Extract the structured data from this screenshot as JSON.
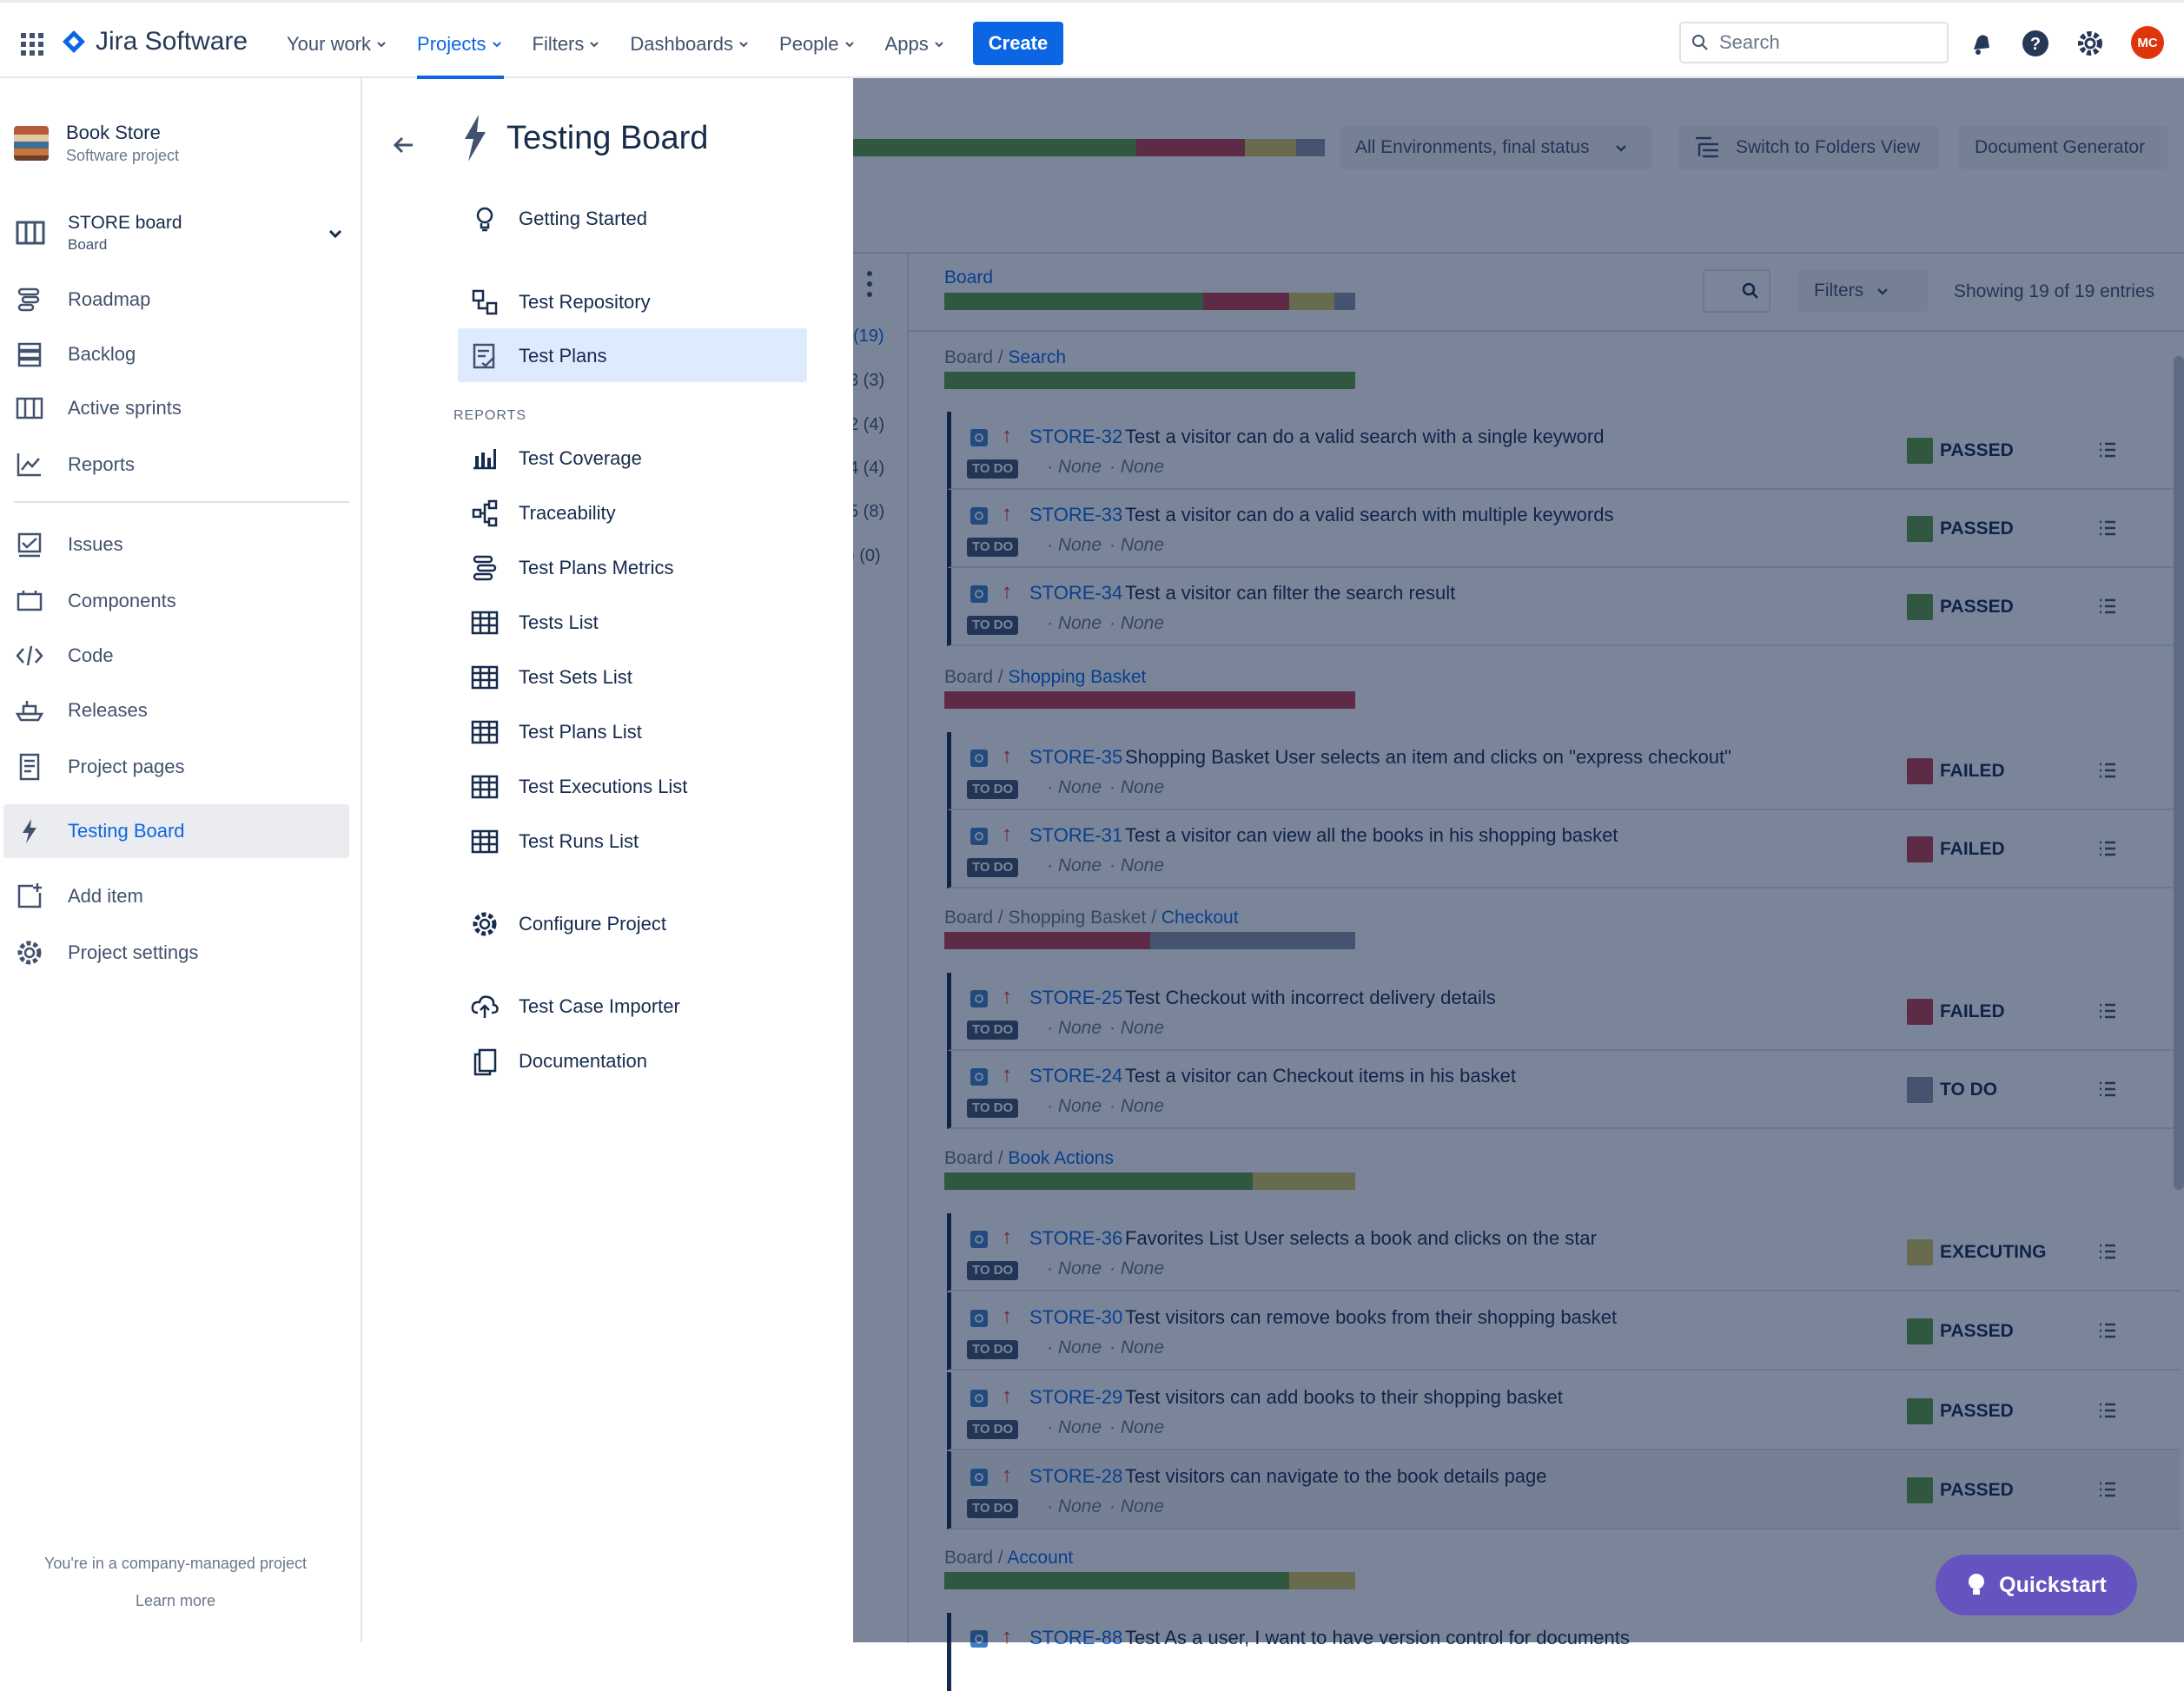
{
  "topnav": {
    "product": "Jira Software",
    "items": [
      "Your work",
      "Projects",
      "Filters",
      "Dashboards",
      "People",
      "Apps"
    ],
    "create": "Create",
    "search_placeholder": "Search",
    "avatar_initials": "MC"
  },
  "sidebar": {
    "project_name": "Book Store",
    "project_type": "Software project",
    "board_name": "STORE board",
    "board_sub": "Board",
    "items": [
      "Roadmap",
      "Backlog",
      "Active sprints",
      "Reports",
      "Issues",
      "Components",
      "Code",
      "Releases",
      "Project pages",
      "Testing Board",
      "Add item",
      "Project settings"
    ],
    "footer_text": "You're in a company-managed project",
    "learn_more": "Learn more"
  },
  "panel2": {
    "title": "Testing Board",
    "items_top": [
      "Getting Started",
      "Test Repository",
      "Test Plans"
    ],
    "reports_label": "REPORTS",
    "reports": [
      "Test Coverage",
      "Traceability",
      "Test Plans Metrics",
      "Tests List",
      "Test Sets List",
      "Test Plans List",
      "Test Executions List",
      "Test Runs List"
    ],
    "items_bottom": [
      "Configure Project",
      "Test Case Importer",
      "Documentation"
    ]
  },
  "main": {
    "env_dropdown": "All Environments, final status",
    "switch_view": "Switch to Folders View",
    "doc_gen": "Document Generator",
    "filters": "Filters",
    "showing": "Showing 19 of 19 entries",
    "rail_counts": [
      "(19)",
      "3 (3)",
      "2 (4)",
      "4 (4)",
      "5 (8)",
      ") (0)"
    ],
    "board_label": "Board",
    "groups": [
      {
        "prefix": "Board / ",
        "name": "Search"
      },
      {
        "prefix": "Board / ",
        "name": "Shopping Basket"
      },
      {
        "prefix": "Board / Shopping Basket / ",
        "name": "Checkout"
      },
      {
        "prefix": "Board / ",
        "name": "Book Actions"
      },
      {
        "prefix": "Board / ",
        "name": "Account"
      }
    ],
    "todo_badge": "TO DO",
    "none": "None",
    "rows": [
      {
        "key": "STORE-32",
        "summary": "Test a visitor can do a valid search with a single keyword",
        "status": "PASSED"
      },
      {
        "key": "STORE-33",
        "summary": "Test a visitor can do a valid search with multiple keywords",
        "status": "PASSED"
      },
      {
        "key": "STORE-34",
        "summary": "Test a visitor can filter the search result",
        "status": "PASSED"
      },
      {
        "key": "STORE-35",
        "summary": "Shopping Basket User selects an item and clicks on \"express checkout\"",
        "status": "FAILED"
      },
      {
        "key": "STORE-31",
        "summary": "Test a visitor can view all the books in his shopping basket",
        "status": "FAILED"
      },
      {
        "key": "STORE-25",
        "summary": "Test Checkout with incorrect delivery details",
        "status": "FAILED"
      },
      {
        "key": "STORE-24",
        "summary": "Test a visitor can Checkout items in his basket",
        "status": "TO DO"
      },
      {
        "key": "STORE-36",
        "summary": "Favorites List User selects a book and clicks on the star",
        "status": "EXECUTING"
      },
      {
        "key": "STORE-30",
        "summary": "Test visitors can remove books from their shopping basket",
        "status": "PASSED"
      },
      {
        "key": "STORE-29",
        "summary": "Test visitors can add books to their shopping basket",
        "status": "PASSED"
      },
      {
        "key": "STORE-28",
        "summary": "Test visitors can navigate to the book details page",
        "status": "PASSED"
      },
      {
        "key": "STORE-88",
        "summary": "Test As a user, I want to have version control for documents",
        "status": ""
      }
    ],
    "quickstart": "Quickstart",
    "status_colors": {
      "PASSED": "#5e9e3f",
      "FAILED": "#c23c4c",
      "TO DO": "#8993a4",
      "EXECUTING": "#d7c65a"
    }
  }
}
